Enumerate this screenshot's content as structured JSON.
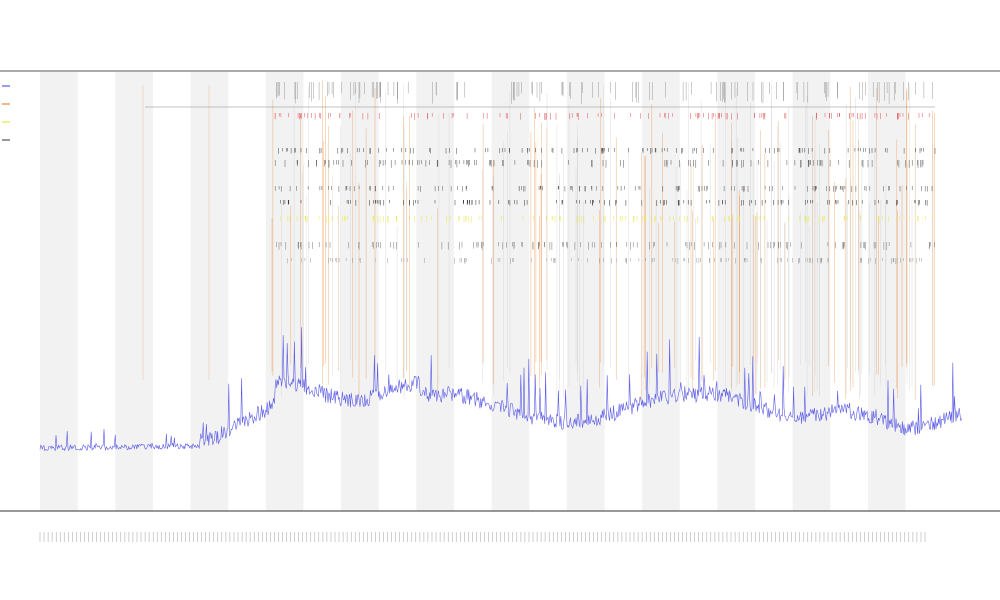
{
  "chart_data": {
    "type": "line",
    "title": "",
    "subtitles": [],
    "xlabel": "",
    "ylabel": "",
    "grid": true,
    "legend_placement": "top-left",
    "y_range": [
      0,
      1
    ],
    "band_count": 24,
    "band_color": "#f2f2f2",
    "series": [
      {
        "role": "main",
        "color": "#5b5be6"
      },
      {
        "role": "spikes",
        "color": "#e8863a"
      },
      {
        "role": "markers",
        "color": "#e8e84a"
      },
      {
        "role": "ticks",
        "color": "#555555"
      },
      {
        "role": "red-ticks",
        "color": "#e05050"
      }
    ],
    "legend": [
      {
        "color": "#5b5be6"
      },
      {
        "color": "#e8863a"
      },
      {
        "color": "#e8e84a"
      },
      {
        "color": "#555555"
      }
    ],
    "series_labels": []
  }
}
